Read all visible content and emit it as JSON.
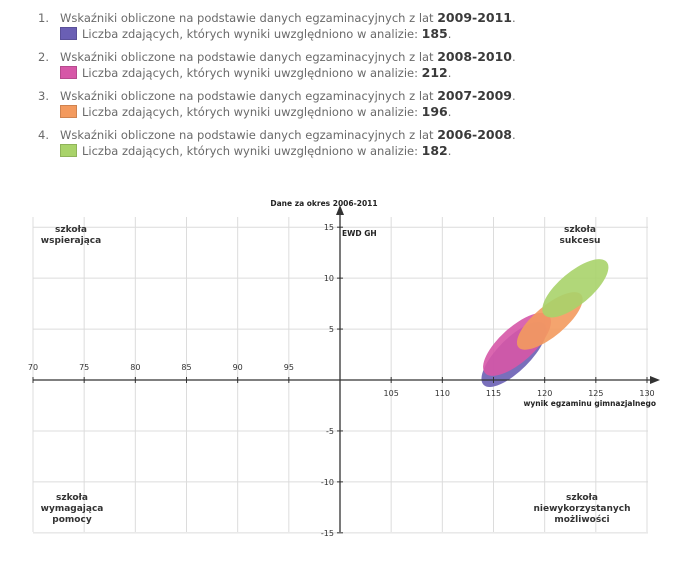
{
  "legend": [
    {
      "number": "1.",
      "text": "Wskaźniki obliczone na podstawie danych egzaminacyjnych z lat ",
      "years": "2009-2011",
      "count_text": "Liczba zdających, których wyniki uwzględniono w analizie: ",
      "count": "185",
      "color": "#6a5fb4"
    },
    {
      "number": "2.",
      "text": "Wskaźniki obliczone na podstawie danych egzaminacyjnych z lat ",
      "years": "2008-2010",
      "count_text": "Liczba zdających, których wyniki uwzględniono w analizie: ",
      "count": "212",
      "color": "#d657a7"
    },
    {
      "number": "3.",
      "text": "Wskaźniki obliczone na podstawie danych egzaminacyjnych z lat ",
      "years": "2007-2009",
      "count_text": "Liczba zdających, których wyniki uwzględniono w analizie: ",
      "count": "196",
      "color": "#f39a5e"
    },
    {
      "number": "4.",
      "text": "Wskaźniki obliczone na podstawie danych egzaminacyjnych z lat ",
      "years": "2006-2008",
      "count_text": "Liczba zdających, których wyniki uwzględniono w analizie: ",
      "count": "182",
      "color": "#a9d36a"
    }
  ],
  "chart_data": {
    "type": "scatter",
    "title": "Dane za okres 2006-2011",
    "xlabel": "wynik egzaminu gimnazjalnego",
    "ylabel": "EWD GH",
    "xlim": [
      70,
      130
    ],
    "ylim": [
      -15,
      15
    ],
    "x_ticks": [
      70,
      75,
      80,
      85,
      90,
      95,
      105,
      110,
      115,
      120,
      125,
      130
    ],
    "y_ticks": [
      -15,
      -10,
      -5,
      5,
      10,
      15
    ],
    "grid": true,
    "quadrants": {
      "top_left": [
        "szkoła",
        "wspierająca"
      ],
      "top_right": [
        "szkoła",
        "sukcesu"
      ],
      "bottom_left": [
        "szkoła",
        "wymagająca",
        "pomocy"
      ],
      "bottom_right": [
        "szkoła",
        "niewykorzystanych",
        "możliwości"
      ]
    },
    "series": [
      {
        "years": "2009-2011",
        "color": "#6a5fb4",
        "center": [
          117.0,
          2.5
        ],
        "rx": 4.2,
        "ry": 1.6,
        "angle": 45
      },
      {
        "years": "2008-2010",
        "color": "#d657a7",
        "center": [
          117.3,
          3.5
        ],
        "rx": 4.2,
        "ry": 1.7,
        "angle": 42
      },
      {
        "years": "2007-2009",
        "color": "#f39a5e",
        "center": [
          120.5,
          5.8
        ],
        "rx": 4.0,
        "ry": 1.5,
        "angle": 40
      },
      {
        "years": "2006-2008",
        "color": "#a9d36a",
        "center": [
          123.0,
          9.0
        ],
        "rx": 4.0,
        "ry": 1.6,
        "angle": 40
      }
    ]
  }
}
